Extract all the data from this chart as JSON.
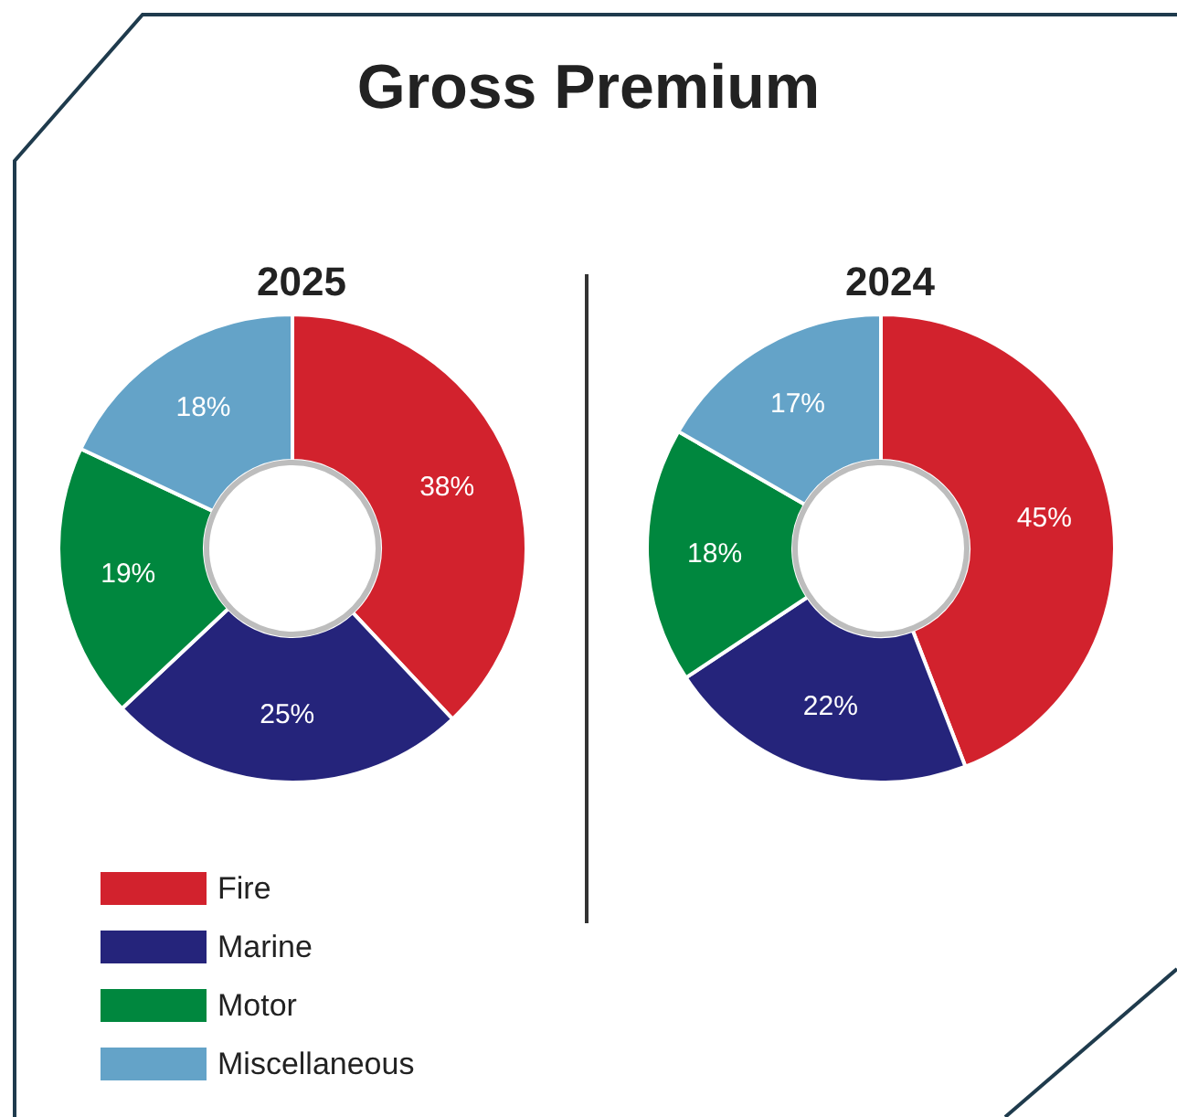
{
  "chart_data": {
    "type": "donut",
    "title": "Gross Premium",
    "categories": [
      "Fire",
      "Marine",
      "Motor",
      "Miscellaneous"
    ],
    "colors": [
      "#d2222d",
      "#25247b",
      "#00873e",
      "#64a3c8"
    ],
    "series": [
      {
        "name": "2025",
        "values": [
          38,
          25,
          19,
          18
        ],
        "value_labels": [
          "38%",
          "25%",
          "19%",
          "18%"
        ]
      },
      {
        "name": "2024",
        "values": [
          45,
          22,
          18,
          17
        ],
        "value_labels": [
          "45%",
          "22%",
          "18%",
          "17%"
        ]
      }
    ],
    "legend": "bottom",
    "data_labels": true
  }
}
